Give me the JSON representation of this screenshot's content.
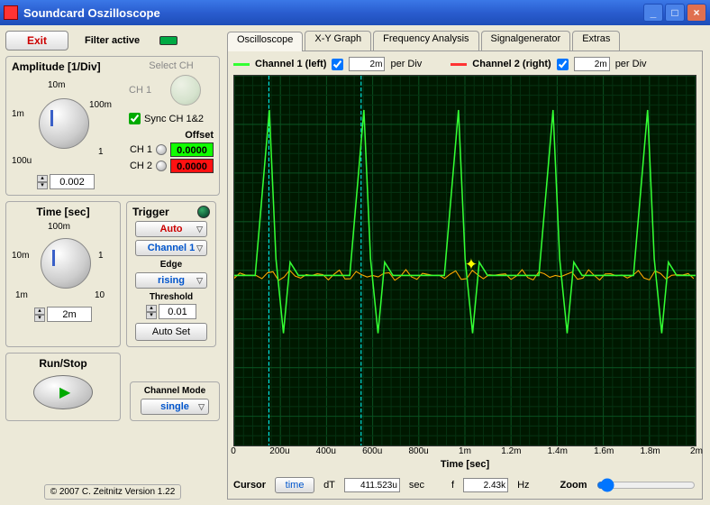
{
  "window": {
    "title": "Soundcard Oszilloscope"
  },
  "top": {
    "exit": "Exit",
    "filter_active": "Filter active"
  },
  "amplitude": {
    "title": "Amplitude [1/Div]",
    "ticks": [
      "1m",
      "10m",
      "100m",
      "100u",
      "1"
    ],
    "value": "0.002",
    "select_ch": "Select CH",
    "ch1": "CH 1",
    "sync": "Sync CH 1&2",
    "offset_label": "Offset",
    "ch1_label": "CH 1",
    "ch1_offset": "0.0000",
    "ch2_label": "CH 2",
    "ch2_offset": "0.0000"
  },
  "time": {
    "title": "Time [sec]",
    "ticks": [
      "10m",
      "100m",
      "1",
      "1m",
      "10"
    ],
    "value": "2m"
  },
  "trigger": {
    "title": "Trigger",
    "mode": "Auto",
    "channel": "Channel 1",
    "edge_label": "Edge",
    "edge": "rising",
    "threshold_label": "Threshold",
    "threshold": "0.01",
    "autoset": "Auto Set"
  },
  "runstop": {
    "title": "Run/Stop"
  },
  "channel_mode": {
    "title": "Channel Mode",
    "value": "single"
  },
  "copyright": "© 2007   C. Zeitnitz Version 1.22",
  "tabs": [
    "Oscilloscope",
    "X-Y Graph",
    "Frequency Analysis",
    "Signalgenerator",
    "Extras"
  ],
  "active_tab": 0,
  "channels": {
    "ch1_label": "Channel 1 (left)",
    "ch1_div": "2m",
    "per_div1": "per Div",
    "ch2_label": "Channel 2 (right)",
    "ch2_div": "2m",
    "per_div2": "per Div"
  },
  "scope": {
    "xlabel": "Time [sec]",
    "xticks": [
      "0",
      "200u",
      "400u",
      "600u",
      "800u",
      "1m",
      "1.2m",
      "1.4m",
      "1.6m",
      "1.8m",
      "2m"
    ],
    "bg": "#001800",
    "grid_major": "#0a5020",
    "grid_minor": "#053010",
    "cursor_color": "#00ffff",
    "ch1_color": "#33ff33",
    "ch2_color": "#ffaa00",
    "cursors_x": [
      0.075,
      0.275
    ],
    "peaks_x": [
      0.085,
      0.29,
      0.495,
      0.7,
      0.905
    ],
    "baseline_y": 0.54
  },
  "cursor_bar": {
    "title": "Cursor",
    "mode": "time",
    "dt_label": "dT",
    "dt_val": "411.523u",
    "dt_unit": "sec",
    "f_label": "f",
    "f_val": "2.43k",
    "f_unit": "Hz",
    "zoom_label": "Zoom"
  }
}
